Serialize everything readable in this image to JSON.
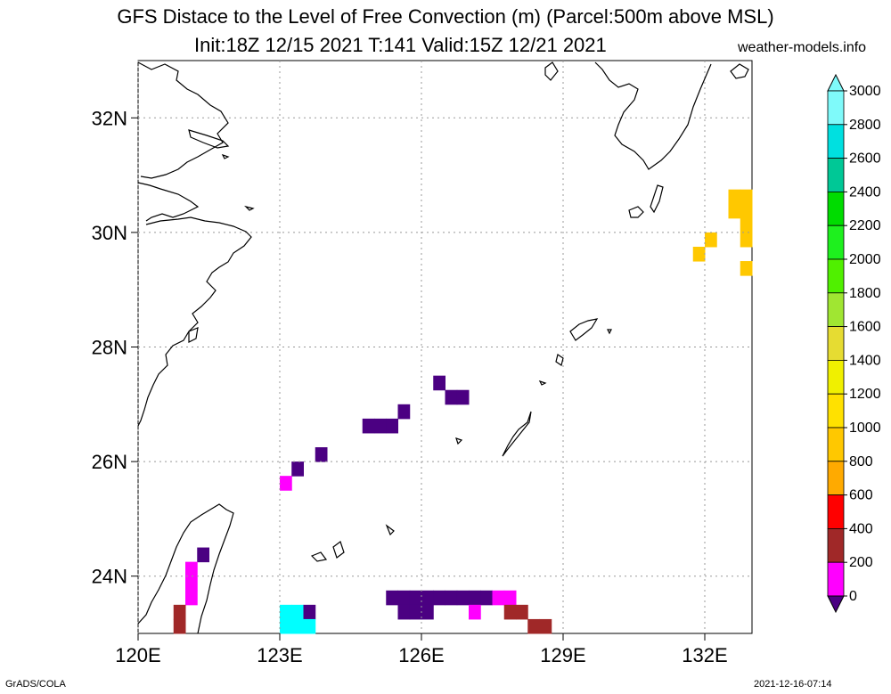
{
  "header": {
    "title_line1": "GFS Distace to the Level of Free Convection (m) (Parcel:500m above MSL)",
    "title_line2": "Init:18Z 12/15 2021 T:141 Valid:15Z 12/21 2021",
    "site": "weather-models.info"
  },
  "footer": {
    "left": "GrADS/COLA",
    "right": "2021-12-16-07:14"
  },
  "map": {
    "lon_labels": [
      "120E",
      "123E",
      "126E",
      "129E",
      "132E"
    ],
    "lat_labels": [
      "32N",
      "30N",
      "28N",
      "26N",
      "24N"
    ],
    "lon_range": [
      120,
      133
    ],
    "lat_range": [
      23,
      33
    ]
  },
  "colorbar": {
    "labels": [
      "3000",
      "2800",
      "2600",
      "2400",
      "2200",
      "2000",
      "1800",
      "1600",
      "1400",
      "1200",
      "1000",
      "800",
      "600",
      "400",
      "200",
      "0"
    ],
    "colors": [
      "#7ffafa",
      "#00e0e0",
      "#00c896",
      "#00dc00",
      "#1ef01e",
      "#50f000",
      "#a0e632",
      "#e6dc32",
      "#f0f000",
      "#ffe100",
      "#ffc800",
      "#ffaa00",
      "#ff0000",
      "#a02828",
      "#ff00ff",
      "#4b0082"
    ]
  },
  "shaded_cells": [
    {
      "lon": 132.5,
      "lat": 30.5,
      "color": "#ffc800"
    },
    {
      "lon": 132.75,
      "lat": 30.5,
      "color": "#ffc800"
    },
    {
      "lon": 132.5,
      "lat": 30.25,
      "color": "#ffc800"
    },
    {
      "lon": 132.75,
      "lat": 30.25,
      "color": "#ffc800"
    },
    {
      "lon": 132.75,
      "lat": 30.0,
      "color": "#ffc800"
    },
    {
      "lon": 132.75,
      "lat": 29.75,
      "color": "#ffc800"
    },
    {
      "lon": 132.0,
      "lat": 29.75,
      "color": "#ffc800"
    },
    {
      "lon": 131.75,
      "lat": 29.5,
      "color": "#ffc800"
    },
    {
      "lon": 132.75,
      "lat": 29.25,
      "color": "#ffc800"
    },
    {
      "lon": 126.25,
      "lat": 27.25,
      "color": "#4b0082"
    },
    {
      "lon": 126.5,
      "lat": 27.0,
      "color": "#4b0082"
    },
    {
      "lon": 126.75,
      "lat": 27.0,
      "color": "#4b0082"
    },
    {
      "lon": 125.5,
      "lat": 26.75,
      "color": "#4b0082"
    },
    {
      "lon": 124.75,
      "lat": 26.5,
      "color": "#4b0082"
    },
    {
      "lon": 125.0,
      "lat": 26.5,
      "color": "#4b0082"
    },
    {
      "lon": 125.25,
      "lat": 26.5,
      "color": "#4b0082"
    },
    {
      "lon": 123.75,
      "lat": 26.0,
      "color": "#4b0082"
    },
    {
      "lon": 123.25,
      "lat": 25.75,
      "color": "#4b0082"
    },
    {
      "lon": 123.0,
      "lat": 25.5,
      "color": "#ff00ff"
    },
    {
      "lon": 121.25,
      "lat": 24.25,
      "color": "#4b0082"
    },
    {
      "lon": 121.0,
      "lat": 24.0,
      "color": "#ff00ff"
    },
    {
      "lon": 121.0,
      "lat": 23.75,
      "color": "#ff00ff"
    },
    {
      "lon": 121.0,
      "lat": 23.5,
      "color": "#ff00ff"
    },
    {
      "lon": 120.75,
      "lat": 23.25,
      "color": "#a02828"
    },
    {
      "lon": 120.75,
      "lat": 23.0,
      "color": "#a02828"
    },
    {
      "lon": 125.25,
      "lat": 23.5,
      "color": "#4b0082"
    },
    {
      "lon": 125.5,
      "lat": 23.5,
      "color": "#4b0082"
    },
    {
      "lon": 125.75,
      "lat": 23.5,
      "color": "#4b0082"
    },
    {
      "lon": 126.0,
      "lat": 23.5,
      "color": "#4b0082"
    },
    {
      "lon": 126.25,
      "lat": 23.5,
      "color": "#4b0082"
    },
    {
      "lon": 126.5,
      "lat": 23.5,
      "color": "#4b0082"
    },
    {
      "lon": 126.75,
      "lat": 23.5,
      "color": "#4b0082"
    },
    {
      "lon": 127.0,
      "lat": 23.5,
      "color": "#4b0082"
    },
    {
      "lon": 127.25,
      "lat": 23.5,
      "color": "#4b0082"
    },
    {
      "lon": 127.5,
      "lat": 23.5,
      "color": "#ff00ff"
    },
    {
      "lon": 127.75,
      "lat": 23.5,
      "color": "#ff00ff"
    },
    {
      "lon": 125.5,
      "lat": 23.25,
      "color": "#4b0082"
    },
    {
      "lon": 125.75,
      "lat": 23.25,
      "color": "#4b0082"
    },
    {
      "lon": 126.0,
      "lat": 23.25,
      "color": "#4b0082"
    },
    {
      "lon": 127.0,
      "lat": 23.25,
      "color": "#ff00ff"
    },
    {
      "lon": 127.75,
      "lat": 23.25,
      "color": "#a02828"
    },
    {
      "lon": 128.0,
      "lat": 23.25,
      "color": "#a02828"
    },
    {
      "lon": 128.25,
      "lat": 23.0,
      "color": "#a02828"
    },
    {
      "lon": 128.5,
      "lat": 23.0,
      "color": "#a02828"
    },
    {
      "lon": 123.0,
      "lat": 23.25,
      "color": "#00ffff"
    },
    {
      "lon": 123.25,
      "lat": 23.25,
      "color": "#00ffff"
    },
    {
      "lon": 123.5,
      "lat": 23.25,
      "color": "#4b0082"
    },
    {
      "lon": 123.0,
      "lat": 23.0,
      "color": "#00ffff"
    },
    {
      "lon": 123.25,
      "lat": 23.0,
      "color": "#00ffff"
    },
    {
      "lon": 123.5,
      "lat": 23.0,
      "color": "#00ffff"
    }
  ]
}
